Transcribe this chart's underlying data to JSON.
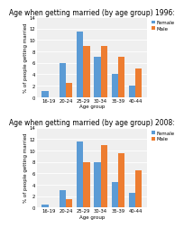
{
  "chart1": {
    "title": "Age when getting married (by age group) 1996:",
    "categories": [
      "16-19",
      "20-24",
      "25-29",
      "30-34",
      "35-39",
      "40-44"
    ],
    "female": [
      1.0,
      6.0,
      11.5,
      7.0,
      4.0,
      2.0
    ],
    "male": [
      0,
      2.5,
      9.0,
      9.0,
      7.0,
      5.0
    ]
  },
  "chart2": {
    "title": "Age when getting married (by age group) 2008:",
    "categories": [
      "16-19",
      "20-24",
      "25-29",
      "30-34",
      "35-39",
      "40-44"
    ],
    "female": [
      0.5,
      3.0,
      11.5,
      8.0,
      4.5,
      2.5
    ],
    "male": [
      0,
      1.5,
      8.0,
      11.0,
      9.5,
      6.5
    ]
  },
  "female_color": "#5B9BD5",
  "male_color": "#ED7D31",
  "ylabel": "% of people getting married",
  "xlabel": "Age group",
  "ylim": [
    0,
    14
  ],
  "yticks": [
    0,
    2,
    4,
    6,
    8,
    10,
    12,
    14
  ],
  "title_fontsize": 5.5,
  "axis_fontsize": 4.0,
  "tick_fontsize": 3.8,
  "legend_fontsize": 4.0,
  "bg_color": "#EFEFEF"
}
